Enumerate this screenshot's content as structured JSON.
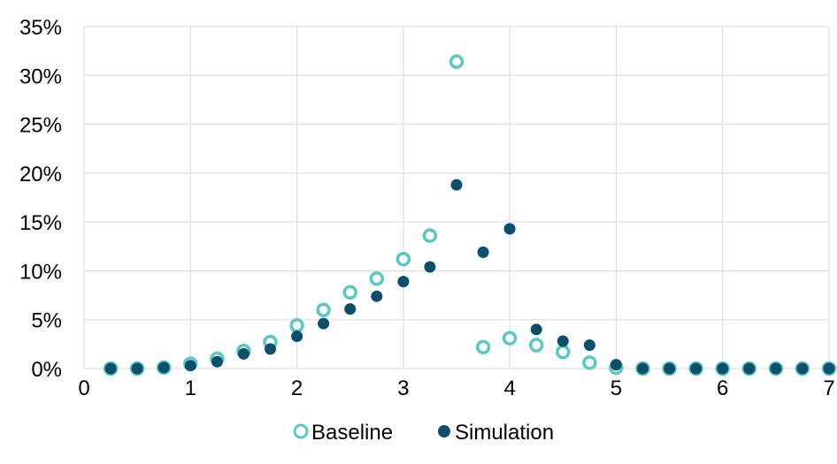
{
  "chart_data": {
    "type": "scatter",
    "xlim": [
      0,
      7
    ],
    "ylim": [
      0,
      35
    ],
    "x_ticks": [
      "0",
      "1",
      "2",
      "3",
      "4",
      "5",
      "6",
      "7"
    ],
    "y_ticks": [
      "0%",
      "5%",
      "10%",
      "15%",
      "20%",
      "25%",
      "30%",
      "35%"
    ],
    "grid": true,
    "legend_position": "bottom",
    "series": [
      {
        "name": "Baseline",
        "marker": "hollow-circle",
        "color": "#5bc8c0",
        "points": [
          [
            0.25,
            0
          ],
          [
            0.5,
            0
          ],
          [
            0.75,
            0.1
          ],
          [
            1.0,
            0.5
          ],
          [
            1.25,
            1.0
          ],
          [
            1.5,
            1.8
          ],
          [
            1.75,
            2.7
          ],
          [
            2.0,
            4.4
          ],
          [
            2.25,
            6.0
          ],
          [
            2.5,
            7.8
          ],
          [
            2.75,
            9.2
          ],
          [
            3.0,
            11.2
          ],
          [
            3.25,
            13.6
          ],
          [
            3.5,
            31.4
          ],
          [
            3.75,
            2.2
          ],
          [
            4.0,
            3.1
          ],
          [
            4.25,
            2.4
          ],
          [
            4.5,
            1.7
          ],
          [
            4.75,
            0.6
          ],
          [
            5.0,
            0.1
          ],
          [
            5.25,
            0
          ],
          [
            5.5,
            0
          ],
          [
            5.75,
            0
          ],
          [
            6.0,
            0
          ],
          [
            6.25,
            0
          ],
          [
            6.5,
            0
          ],
          [
            6.75,
            0
          ],
          [
            7.0,
            0
          ]
        ]
      },
      {
        "name": "Simulation",
        "marker": "filled-circle",
        "color": "#0b4f6c",
        "points": [
          [
            0.25,
            0
          ],
          [
            0.5,
            0
          ],
          [
            0.75,
            0.1
          ],
          [
            1.0,
            0.3
          ],
          [
            1.25,
            0.7
          ],
          [
            1.5,
            1.5
          ],
          [
            1.75,
            2.0
          ],
          [
            2.0,
            3.3
          ],
          [
            2.25,
            4.6
          ],
          [
            2.5,
            6.1
          ],
          [
            2.75,
            7.4
          ],
          [
            3.0,
            8.9
          ],
          [
            3.25,
            10.4
          ],
          [
            3.5,
            18.8
          ],
          [
            3.75,
            11.9
          ],
          [
            4.0,
            14.3
          ],
          [
            4.25,
            4.0
          ],
          [
            4.5,
            2.8
          ],
          [
            4.75,
            2.4
          ],
          [
            5.0,
            0.4
          ],
          [
            5.25,
            0
          ],
          [
            5.5,
            0
          ],
          [
            5.75,
            0
          ],
          [
            6.0,
            0
          ],
          [
            6.25,
            0
          ],
          [
            6.5,
            0
          ],
          [
            6.75,
            0
          ],
          [
            7.0,
            0
          ]
        ]
      }
    ]
  }
}
